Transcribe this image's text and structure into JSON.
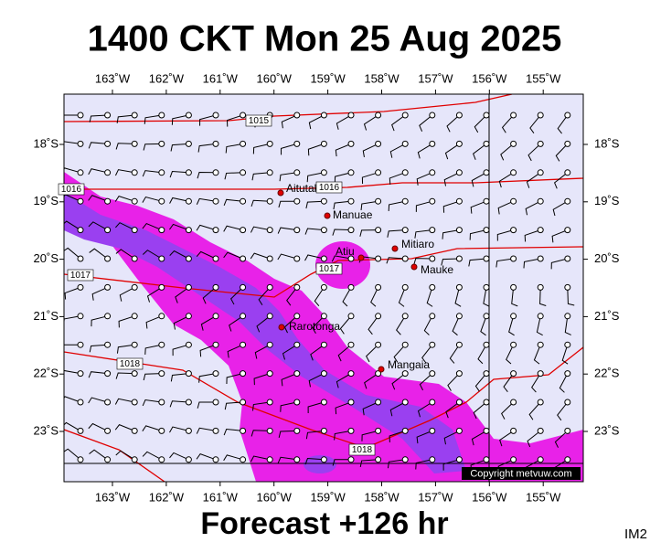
{
  "header": {
    "title": "1400 CKT Mon 25 Aug 2025"
  },
  "footer": {
    "forecast": "Forecast +126 hr",
    "code": "IM2"
  },
  "map": {
    "lon_ticks": [
      "163˚W",
      "162˚W",
      "161˚W",
      "160˚W",
      "159˚W",
      "158˚W",
      "157˚W",
      "156˚W",
      "155˚W"
    ],
    "lat_ticks": [
      "18˚S",
      "19˚S",
      "20˚S",
      "21˚S",
      "22˚S",
      "23˚S"
    ],
    "places": [
      "Aitutaki",
      "Manuae",
      "Atiu",
      "Mitiaro",
      "Mauke",
      "Rarotonga",
      "Mangaia"
    ],
    "isobar_labels": [
      "1015",
      "1016",
      "1016",
      "1017",
      "1017",
      "1018",
      "1018"
    ],
    "copyright": "Copyright metvuw.com"
  }
}
